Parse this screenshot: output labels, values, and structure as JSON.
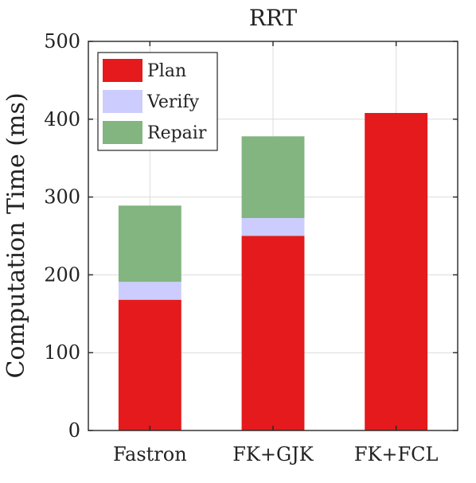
{
  "chart_data": {
    "type": "bar",
    "stacked": true,
    "title": "RRT",
    "xlabel": "",
    "ylabel": "Computation Time (ms)",
    "categories": [
      "Fastron",
      "FK+GJK",
      "FK+FCL"
    ],
    "series": [
      {
        "name": "Plan",
        "values": [
          168,
          250,
          408
        ],
        "color": "#e41a1c"
      },
      {
        "name": "Verify",
        "values": [
          23,
          23,
          0
        ],
        "color": "#ccccff"
      },
      {
        "name": "Repair",
        "values": [
          98,
          105,
          0
        ],
        "color": "#82b580"
      }
    ],
    "ylim": [
      0,
      500
    ],
    "yticks": [
      "0",
      "100",
      "200",
      "300",
      "400",
      "500"
    ],
    "grid": true,
    "legend_position": "top-left"
  }
}
